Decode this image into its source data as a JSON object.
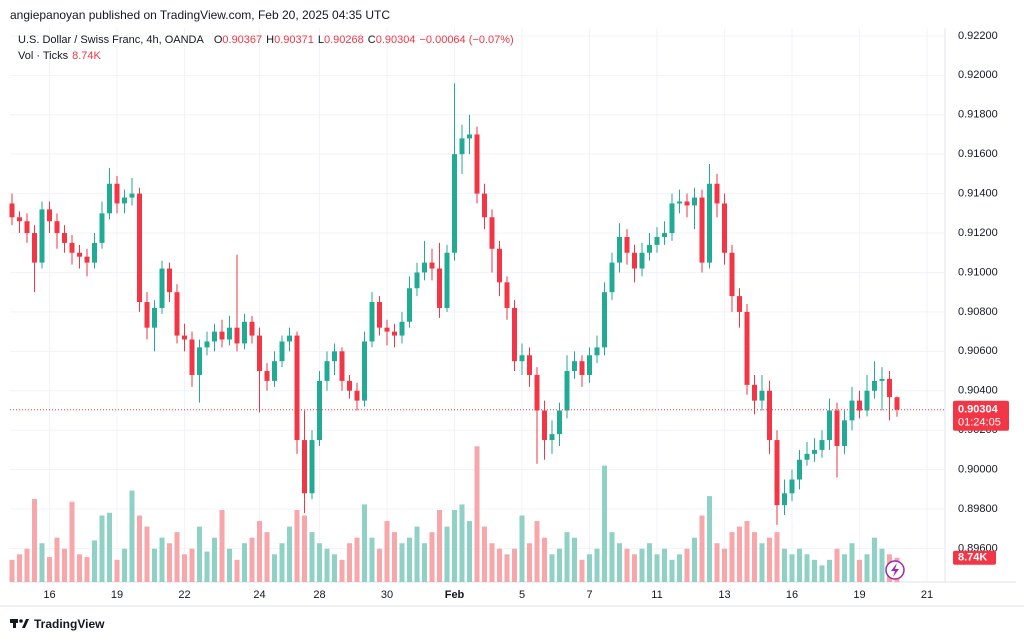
{
  "header": {
    "published": "angiepanoyan published on TradingView.com, Feb 20, 2025 04:35 UTC",
    "symbol": "U.S. Dollar / Swiss Franc, 4h, OANDA",
    "ohlc_labels": [
      "O",
      "H",
      "L",
      "C"
    ],
    "change": "−0.00064 (−0.07%)",
    "volume_label": "Vol · Ticks"
  },
  "footer": {
    "brand": "TradingView"
  },
  "chart_data": {
    "type": "candlestick",
    "categories": [
      null,
      null,
      null,
      null,
      null,
      "16",
      null,
      null,
      null,
      null,
      null,
      null,
      null,
      null,
      "19",
      null,
      null,
      null,
      null,
      null,
      null,
      null,
      null,
      "22",
      null,
      null,
      null,
      null,
      null,
      null,
      null,
      null,
      null,
      "24",
      null,
      null,
      null,
      null,
      null,
      null,
      null,
      "28",
      null,
      null,
      null,
      null,
      null,
      null,
      null,
      null,
      "30",
      null,
      null,
      null,
      null,
      null,
      null,
      null,
      null,
      "Feb",
      null,
      null,
      null,
      null,
      null,
      null,
      null,
      null,
      "5",
      null,
      null,
      null,
      null,
      null,
      null,
      null,
      null,
      "7",
      null,
      null,
      null,
      null,
      null,
      null,
      null,
      null,
      "11",
      null,
      null,
      null,
      null,
      null,
      null,
      null,
      null,
      "13",
      null,
      null,
      null,
      null,
      null,
      null,
      null,
      null,
      "16",
      null,
      null,
      null,
      null,
      null,
      null,
      null,
      null,
      "19",
      null,
      null,
      null,
      null,
      null,
      null,
      null,
      null,
      "21"
    ],
    "open": [
      0.9135,
      0.9128,
      0.9126,
      0.912,
      0.9105,
      0.9132,
      0.9126,
      0.912,
      0.9115,
      0.911,
      0.9108,
      0.9105,
      0.9115,
      0.913,
      0.9145,
      0.9135,
      0.9138,
      0.914,
      0.9085,
      0.9072,
      0.9082,
      0.9102,
      0.909,
      0.9068,
      0.9066,
      0.9048,
      0.9062,
      0.9065,
      0.907,
      0.9066,
      0.9072,
      0.9064,
      0.9075,
      0.9068,
      0.905,
      0.9045,
      0.9055,
      0.9065,
      0.9068,
      0.9015,
      0.8988,
      0.9015,
      0.9045,
      0.9055,
      0.906,
      0.9045,
      0.904,
      0.9035,
      0.9065,
      0.9085,
      0.9072,
      0.907,
      0.9068,
      0.9075,
      0.9092,
      0.91,
      0.9105,
      0.9102,
      0.9082,
      0.911,
      0.916,
      0.9168,
      0.917,
      0.914,
      0.9128,
      0.9112,
      0.9095,
      0.9082,
      0.9055,
      0.9058,
      0.9048,
      0.903,
      0.9015,
      0.9018,
      0.903,
      0.905,
      0.9055,
      0.9048,
      0.9058,
      0.9062,
      0.909,
      0.9105,
      0.9118,
      0.911,
      0.9102,
      0.911,
      0.9114,
      0.9118,
      0.912,
      0.9135,
      0.9136,
      0.9134,
      0.9138,
      0.9105,
      0.9145,
      0.9135,
      0.911,
      0.9088,
      0.908,
      0.9043,
      0.9035,
      0.904,
      0.9015,
      0.8982,
      0.8988,
      0.8995,
      0.9005,
      0.9008,
      0.901,
      0.9015,
      0.903,
      0.9012,
      0.9025,
      0.9035,
      0.903,
      0.904,
      0.9045,
      0.9046,
      0.90367,
      null,
      null,
      null,
      null
    ],
    "high": [
      0.914,
      0.9131,
      0.913,
      0.9124,
      0.9136,
      0.9136,
      0.913,
      0.9124,
      0.9119,
      0.9114,
      0.9112,
      0.912,
      0.9136,
      0.9153,
      0.9149,
      0.9142,
      0.9148,
      0.9143,
      0.909,
      0.9086,
      0.9106,
      0.9105,
      0.9094,
      0.9074,
      0.907,
      0.9066,
      0.907,
      0.9074,
      0.9076,
      0.9078,
      0.9109,
      0.9079,
      0.9078,
      0.9072,
      0.9054,
      0.906,
      0.9068,
      0.9072,
      0.907,
      0.903,
      0.902,
      0.905,
      0.906,
      0.9064,
      0.9062,
      0.9048,
      0.9044,
      0.907,
      0.909,
      0.9088,
      0.9076,
      0.9074,
      0.908,
      0.9098,
      0.9105,
      0.9116,
      0.9112,
      0.9115,
      0.9114,
      0.9196,
      0.9175,
      0.918,
      0.9174,
      0.9145,
      0.9132,
      0.9116,
      0.9098,
      0.9086,
      0.9064,
      0.9062,
      0.9052,
      0.9035,
      0.9025,
      0.9034,
      0.9058,
      0.906,
      0.9058,
      0.9062,
      0.9068,
      0.9095,
      0.911,
      0.9125,
      0.9122,
      0.9114,
      0.9115,
      0.912,
      0.9123,
      0.9126,
      0.914,
      0.9142,
      0.914,
      0.9143,
      0.9142,
      0.9155,
      0.915,
      0.914,
      0.9114,
      0.9092,
      0.9084,
      0.9048,
      0.9048,
      0.9045,
      0.902,
      0.8995,
      0.9,
      0.901,
      0.9014,
      0.9016,
      0.902,
      0.9036,
      0.9034,
      0.903,
      0.9042,
      0.904,
      0.9048,
      0.9055,
      0.9052,
      0.905,
      0.90371,
      null,
      null,
      null,
      null
    ],
    "low": [
      0.9124,
      0.912,
      0.9115,
      0.909,
      0.9102,
      0.912,
      0.9112,
      0.911,
      0.9104,
      0.9102,
      0.9098,
      0.9102,
      0.9112,
      0.9127,
      0.913,
      0.913,
      0.9134,
      0.908,
      0.9066,
      0.906,
      0.9079,
      0.9085,
      0.9064,
      0.906,
      0.9042,
      0.9034,
      0.9058,
      0.906,
      0.9062,
      0.9063,
      0.906,
      0.9061,
      0.9064,
      0.9029,
      0.904,
      0.9042,
      0.9052,
      0.906,
      0.9008,
      0.8978,
      0.8985,
      0.9012,
      0.904,
      0.9048,
      0.904,
      0.9036,
      0.903,
      0.9032,
      0.9062,
      0.9068,
      0.9063,
      0.9062,
      0.9064,
      0.9072,
      0.9088,
      0.9096,
      0.9096,
      0.9077,
      0.908,
      0.9106,
      0.915,
      0.916,
      0.9135,
      0.9122,
      0.91,
      0.9088,
      0.9076,
      0.905,
      0.9048,
      0.9042,
      0.9003,
      0.9005,
      0.9008,
      0.9012,
      0.9026,
      0.9046,
      0.9042,
      0.9044,
      0.9054,
      0.9058,
      0.9086,
      0.91,
      0.9104,
      0.9095,
      0.9098,
      0.9106,
      0.911,
      0.9114,
      0.9116,
      0.913,
      0.9128,
      0.9122,
      0.91,
      0.9102,
      0.9128,
      0.9104,
      0.908,
      0.9072,
      0.9038,
      0.9028,
      0.903,
      0.9008,
      0.8972,
      0.8977,
      0.8984,
      0.899,
      0.9002,
      0.9004,
      0.9006,
      0.901,
      0.8996,
      0.9008,
      0.902,
      0.9026,
      0.9027,
      0.9036,
      0.903,
      0.9025,
      0.90268,
      null,
      null,
      null,
      null
    ],
    "close": [
      0.9128,
      0.9126,
      0.912,
      0.9105,
      0.9132,
      0.9126,
      0.912,
      0.9115,
      0.911,
      0.9108,
      0.9105,
      0.9115,
      0.913,
      0.9145,
      0.9135,
      0.9138,
      0.914,
      0.9085,
      0.9072,
      0.9082,
      0.9102,
      0.909,
      0.9068,
      0.9066,
      0.9048,
      0.9062,
      0.9065,
      0.907,
      0.9066,
      0.9072,
      0.9064,
      0.9075,
      0.9068,
      0.905,
      0.9045,
      0.9055,
      0.9065,
      0.9068,
      0.9015,
      0.8988,
      0.9015,
      0.9045,
      0.9055,
      0.906,
      0.9045,
      0.904,
      0.9035,
      0.9065,
      0.9085,
      0.9072,
      0.907,
      0.9068,
      0.9075,
      0.9092,
      0.91,
      0.9105,
      0.9102,
      0.9082,
      0.911,
      0.916,
      0.9168,
      0.917,
      0.914,
      0.9128,
      0.9112,
      0.9095,
      0.9082,
      0.9055,
      0.9058,
      0.9048,
      0.903,
      0.9015,
      0.9018,
      0.903,
      0.905,
      0.9055,
      0.9048,
      0.9058,
      0.9062,
      0.909,
      0.9105,
      0.9118,
      0.911,
      0.9102,
      0.911,
      0.9114,
      0.9118,
      0.912,
      0.9135,
      0.9136,
      0.9134,
      0.9138,
      0.9105,
      0.9145,
      0.9135,
      0.911,
      0.9088,
      0.908,
      0.9043,
      0.9035,
      0.904,
      0.9015,
      0.8982,
      0.8988,
      0.8995,
      0.9005,
      0.9008,
      0.901,
      0.9015,
      0.903,
      0.9012,
      0.9025,
      0.9035,
      0.903,
      0.904,
      0.9045,
      0.9046,
      0.90368,
      0.90304,
      null,
      null,
      null,
      null
    ],
    "colors": {
      "up": "#22ab94",
      "down": "#f23645"
    },
    "ylim": [
      0.8943,
      0.9224
    ],
    "yticks": [
      {
        "value": 0.922,
        "label": "0.92200"
      },
      {
        "value": 0.92,
        "label": "0.92000"
      },
      {
        "value": 0.918,
        "label": "0.91800"
      },
      {
        "value": 0.916,
        "label": "0.91600"
      },
      {
        "value": 0.914,
        "label": "0.91400"
      },
      {
        "value": 0.912,
        "label": "0.91200"
      },
      {
        "value": 0.91,
        "label": "0.91000"
      },
      {
        "value": 0.908,
        "label": "0.90800"
      },
      {
        "value": 0.906,
        "label": "0.90600"
      },
      {
        "value": 0.904,
        "label": "0.90400"
      },
      {
        "value": 0.902,
        "label": "0.90200"
      },
      {
        "value": 0.9,
        "label": "0.90000"
      },
      {
        "value": 0.898,
        "label": "0.89800"
      },
      {
        "value": 0.896,
        "label": "0.89600"
      }
    ],
    "grid": true,
    "countdown": "01:24:05",
    "volume": {
      "values": [
        8,
        10,
        12,
        30,
        14,
        9,
        16,
        12,
        29,
        10,
        9,
        15,
        24,
        25,
        8,
        12,
        33,
        24,
        20,
        12,
        16,
        14,
        18,
        10,
        12,
        20,
        11,
        16,
        26,
        12,
        8,
        14,
        16,
        22,
        18,
        10,
        14,
        20,
        26,
        24,
        18,
        14,
        12,
        10,
        8,
        14,
        16,
        28,
        16,
        12,
        22,
        18,
        14,
        16,
        20,
        14,
        18,
        26,
        20,
        26,
        28,
        22,
        49,
        20,
        14,
        12,
        10,
        12,
        24,
        14,
        22,
        16,
        10,
        12,
        18,
        16,
        8,
        10,
        12,
        42,
        18,
        14,
        12,
        10,
        12,
        14,
        10,
        12,
        8,
        10,
        12,
        16,
        24,
        31,
        14,
        12,
        18,
        20,
        22,
        18,
        14,
        16,
        18,
        12,
        10,
        12,
        10,
        8,
        6,
        8,
        12,
        10,
        14,
        8,
        10,
        16,
        12,
        10,
        8.74,
        null,
        null,
        null,
        null
      ],
      "value_labels_last": "8.74K",
      "ylim": [
        0,
        200
      ],
      "colors": {
        "up": "#8fd1c5",
        "down": "#f7a6a9"
      }
    }
  }
}
